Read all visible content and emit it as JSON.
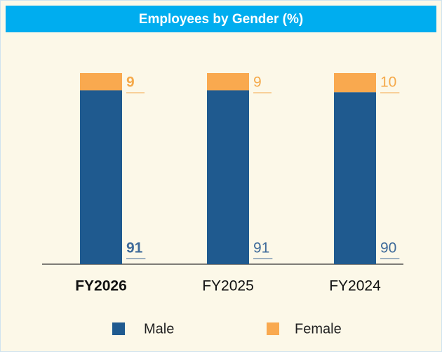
{
  "chart_data": {
    "type": "stacked_bar",
    "title": "Employees by Gender (%)",
    "categories": [
      "FY2026",
      "FY2025",
      "FY2024"
    ],
    "series": [
      {
        "name": "Male",
        "color": "#1f5a8f",
        "label_color": "#3f6b9a",
        "values": [
          91,
          91,
          90
        ]
      },
      {
        "name": "Female",
        "color": "#f9a94f",
        "label_color": "#f5a94a",
        "values": [
          9,
          9,
          10
        ]
      }
    ],
    "ylim": [
      0,
      100
    ],
    "legend": "bottom"
  }
}
